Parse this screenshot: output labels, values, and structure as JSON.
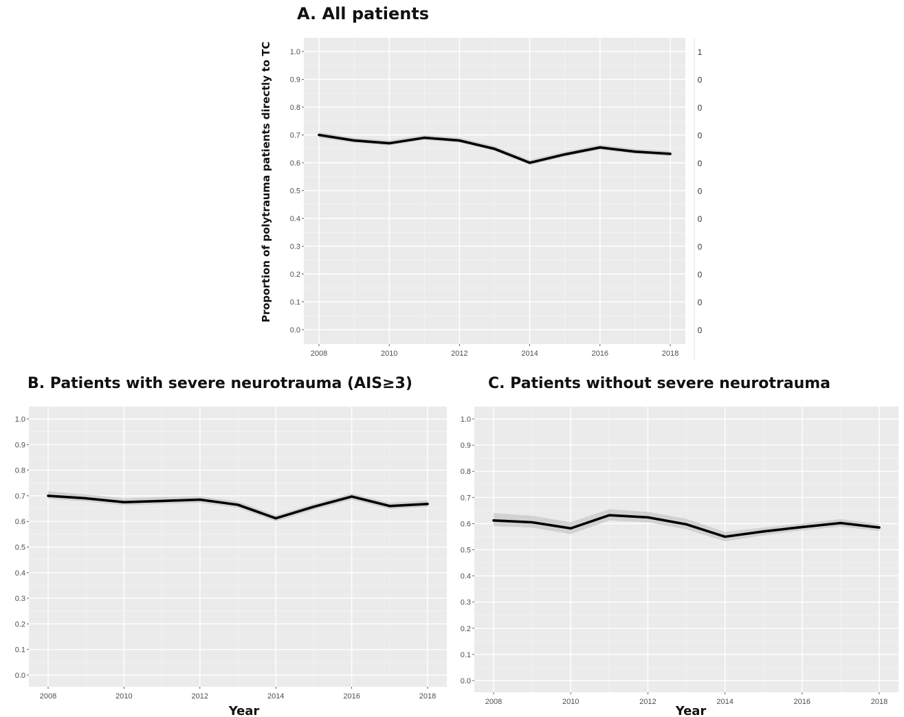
{
  "chart_data": [
    {
      "id": "A",
      "type": "line",
      "title": "A. All patients",
      "xlabel": "",
      "ylabel": "Proportion of polytrauma patients directly to TC",
      "x": [
        2008,
        2009,
        2010,
        2011,
        2012,
        2013,
        2014,
        2015,
        2016,
        2017,
        2018
      ],
      "xticks": [
        "2008",
        "2010",
        "2012",
        "2014",
        "2016",
        "2018"
      ],
      "xlim": [
        2008,
        2018
      ],
      "yticks": [
        "0.0",
        "0.1",
        "0.2",
        "0.3",
        "0.4",
        "0.5",
        "0.6",
        "0.7",
        "0.8",
        "0.9",
        "1.0"
      ],
      "ylim": [
        0,
        1
      ],
      "grid": true,
      "series": [
        {
          "values": [
            0.7,
            0.68,
            0.67,
            0.69,
            0.68,
            0.65,
            0.6,
            0.63,
            0.655,
            0.64,
            0.632
          ],
          "lower": [
            0.69,
            0.672,
            0.662,
            0.682,
            0.672,
            0.642,
            0.592,
            0.622,
            0.647,
            0.632,
            0.624
          ],
          "upper": [
            0.71,
            0.69,
            0.68,
            0.7,
            0.69,
            0.66,
            0.61,
            0.64,
            0.665,
            0.65,
            0.642
          ]
        }
      ],
      "right_axis_labels": [
        "1",
        "0",
        "0",
        "0",
        "0",
        "0",
        "0",
        "0",
        "0",
        "0",
        "0"
      ]
    },
    {
      "id": "B",
      "type": "line",
      "title": "B. Patients with severe neurotrauma (AIS≥3)",
      "xlabel": "Year",
      "ylabel": "",
      "x": [
        2008,
        2009,
        2010,
        2011,
        2012,
        2013,
        2014,
        2015,
        2016,
        2017,
        2018
      ],
      "xticks": [
        "2008",
        "2010",
        "2012",
        "2014",
        "2016",
        "2018"
      ],
      "xlim": [
        2008,
        2018
      ],
      "yticks": [
        "0.0",
        "0.1",
        "0.2",
        "0.3",
        "0.4",
        "0.5",
        "0.6",
        "0.7",
        "0.8",
        "0.9",
        "1.0"
      ],
      "ylim": [
        0,
        1
      ],
      "grid": true,
      "series": [
        {
          "values": [
            0.7,
            0.69,
            0.675,
            0.68,
            0.685,
            0.665,
            0.612,
            0.657,
            0.697,
            0.66,
            0.668
          ],
          "lower": [
            0.688,
            0.678,
            0.663,
            0.668,
            0.673,
            0.653,
            0.6,
            0.645,
            0.685,
            0.648,
            0.656
          ],
          "upper": [
            0.718,
            0.705,
            0.69,
            0.695,
            0.698,
            0.678,
            0.624,
            0.669,
            0.709,
            0.672,
            0.682
          ]
        }
      ]
    },
    {
      "id": "C",
      "type": "line",
      "title": "C. Patients without severe neurotrauma",
      "xlabel": "Year",
      "ylabel": "",
      "x": [
        2008,
        2009,
        2010,
        2011,
        2012,
        2013,
        2014,
        2015,
        2016,
        2017,
        2018
      ],
      "xticks": [
        "2008",
        "2010",
        "2012",
        "2014",
        "2016",
        "2018"
      ],
      "xlim": [
        2008,
        2018
      ],
      "yticks": [
        "0.0",
        "0.1",
        "0.2",
        "0.3",
        "0.4",
        "0.5",
        "0.6",
        "0.7",
        "0.8",
        "0.9",
        "1.0"
      ],
      "ylim": [
        0,
        1
      ],
      "grid": true,
      "series": [
        {
          "values": [
            0.612,
            0.605,
            0.582,
            0.632,
            0.624,
            0.597,
            0.55,
            0.57,
            0.587,
            0.602,
            0.585
          ],
          "lower": [
            0.59,
            0.585,
            0.56,
            0.612,
            0.605,
            0.578,
            0.532,
            0.555,
            0.574,
            0.588,
            0.572
          ],
          "upper": [
            0.64,
            0.63,
            0.605,
            0.655,
            0.645,
            0.618,
            0.568,
            0.585,
            0.6,
            0.617,
            0.598
          ]
        }
      ]
    }
  ]
}
